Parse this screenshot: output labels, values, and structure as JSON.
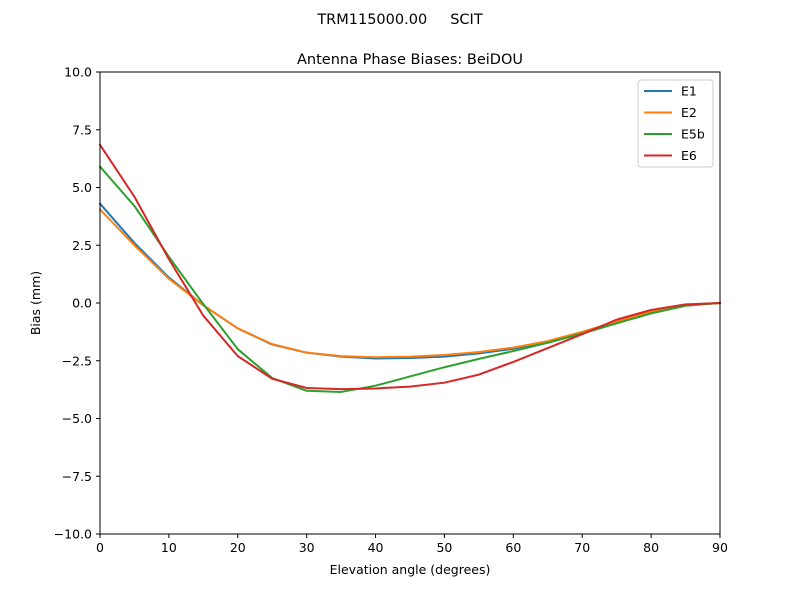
{
  "figure": {
    "suptitle": "TRM115000.00     SCIT"
  },
  "chart_data": {
    "type": "line",
    "title": "Antenna Phase Biases: BeiDOU",
    "xlabel": "Elevation angle (degrees)",
    "ylabel": "Bias (mm)",
    "xlim": [
      0,
      90
    ],
    "ylim": [
      -10,
      10
    ],
    "x_ticks": [
      0,
      10,
      20,
      30,
      40,
      50,
      60,
      70,
      80,
      90
    ],
    "x_tick_labels": [
      "0",
      "10",
      "20",
      "30",
      "40",
      "50",
      "60",
      "70",
      "80",
      "90"
    ],
    "y_ticks": [
      -10,
      -7.5,
      -5,
      -2.5,
      0,
      2.5,
      5,
      7.5,
      10
    ],
    "y_tick_labels": [
      "−10.0",
      "−7.5",
      "−5.0",
      "−2.5",
      "0.0",
      "2.5",
      "5.0",
      "7.5",
      "10.0"
    ],
    "grid": false,
    "legend_position": "top-right",
    "x": [
      0,
      5,
      10,
      15,
      20,
      25,
      30,
      35,
      40,
      45,
      50,
      55,
      60,
      65,
      70,
      75,
      80,
      85,
      90
    ],
    "series": [
      {
        "name": "E1",
        "color": "#1f77b4",
        "values": [
          4.3,
          2.6,
          1.1,
          -0.1,
          -1.1,
          -1.8,
          -2.15,
          -2.32,
          -2.4,
          -2.38,
          -2.32,
          -2.18,
          -1.98,
          -1.68,
          -1.28,
          -0.82,
          -0.38,
          -0.08,
          0.0
        ]
      },
      {
        "name": "E2",
        "color": "#ff7f0e",
        "values": [
          4.05,
          2.5,
          1.05,
          -0.1,
          -1.1,
          -1.78,
          -2.15,
          -2.3,
          -2.35,
          -2.32,
          -2.25,
          -2.12,
          -1.93,
          -1.65,
          -1.25,
          -0.8,
          -0.37,
          -0.08,
          0.0
        ]
      },
      {
        "name": "E5b",
        "color": "#2ca02c",
        "values": [
          5.9,
          4.2,
          2.0,
          -0.05,
          -2.0,
          -3.25,
          -3.8,
          -3.85,
          -3.58,
          -3.18,
          -2.78,
          -2.42,
          -2.08,
          -1.72,
          -1.32,
          -0.88,
          -0.45,
          -0.12,
          0.0
        ]
      },
      {
        "name": "E6",
        "color": "#d62728",
        "values": [
          6.85,
          4.6,
          1.9,
          -0.55,
          -2.3,
          -3.28,
          -3.68,
          -3.73,
          -3.7,
          -3.62,
          -3.45,
          -3.1,
          -2.55,
          -1.95,
          -1.35,
          -0.72,
          -0.3,
          -0.06,
          0.0
        ]
      }
    ]
  }
}
